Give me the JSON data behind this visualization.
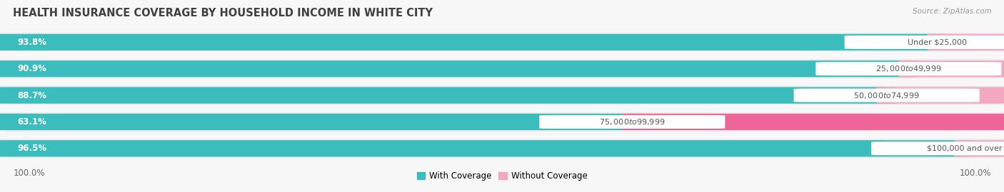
{
  "title": "HEALTH INSURANCE COVERAGE BY HOUSEHOLD INCOME IN WHITE CITY",
  "source": "Source: ZipAtlas.com",
  "categories": [
    "Under $25,000",
    "$25,000 to $49,999",
    "$50,000 to $74,999",
    "$75,000 to $99,999",
    "$100,000 and over"
  ],
  "with_coverage": [
    93.8,
    90.9,
    88.7,
    63.1,
    96.5
  ],
  "without_coverage": [
    6.2,
    9.1,
    11.3,
    36.9,
    3.5
  ],
  "color_with": "#3BBDBD",
  "color_without_light": "#F4A8BF",
  "color_without_dark": "#EE6699",
  "color_bg_bar": "#E8E8E8",
  "color_bg_fig": "#F7F7F7",
  "label_left_100": "100.0%",
  "label_right_100": "100.0%",
  "legend_with": "With Coverage",
  "legend_without": "Without Coverage",
  "fontsize_title": 10.5,
  "fontsize_pct_white": 8.5,
  "fontsize_pct_gray": 8.5,
  "fontsize_label": 8.0,
  "fontsize_source": 7.5,
  "fontsize_legend": 8.5,
  "fontsize_100": 8.5,
  "without_coverage_threshold": 20.0
}
